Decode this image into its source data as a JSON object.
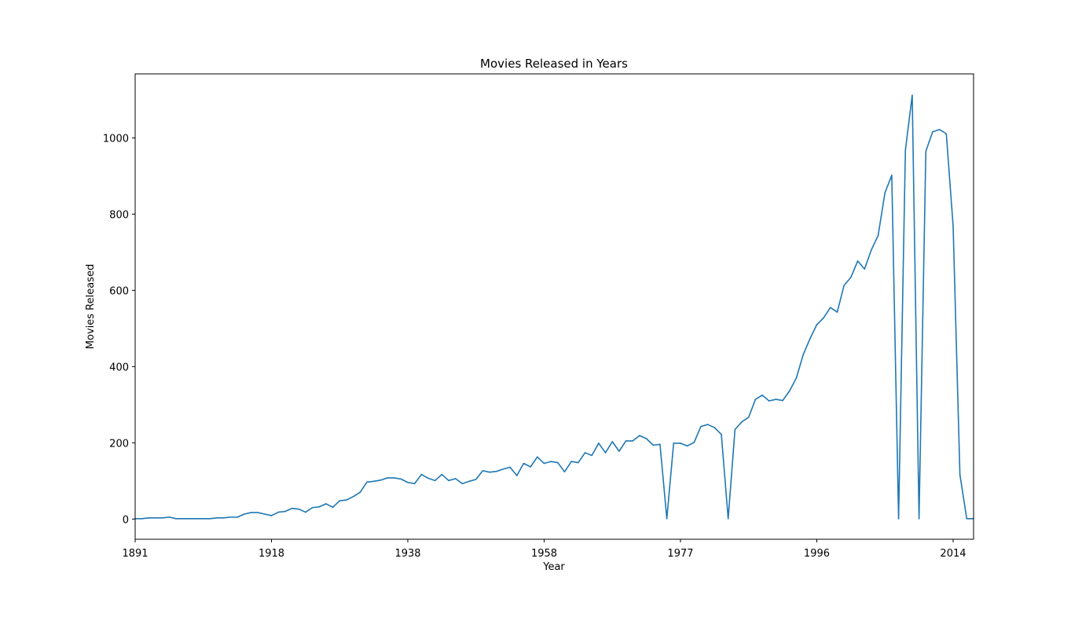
{
  "chart_data": {
    "type": "line",
    "title": "Movies Released in Years",
    "xlabel": "Year",
    "ylabel": "Movies Released",
    "xlim": [
      0,
      123
    ],
    "ylim": [
      -53,
      1168
    ],
    "x_ticks": [
      {
        "pos": 0,
        "label": "1891"
      },
      {
        "pos": 20,
        "label": "1918"
      },
      {
        "pos": 40,
        "label": "1938"
      },
      {
        "pos": 60,
        "label": "1958"
      },
      {
        "pos": 80,
        "label": "1977"
      },
      {
        "pos": 100,
        "label": "1996"
      },
      {
        "pos": 120,
        "label": "2014"
      }
    ],
    "y_ticks": [
      0,
      200,
      400,
      600,
      800,
      1000
    ],
    "grid": false,
    "color": "#1f77b4",
    "series": [
      {
        "x": [
          0,
          1,
          2,
          3,
          4,
          5,
          6,
          7,
          8,
          9,
          10,
          11,
          12,
          13,
          14,
          15,
          16,
          17,
          18,
          19,
          20,
          21,
          22,
          23,
          24,
          25,
          26,
          27,
          28,
          29,
          30,
          31,
          32,
          33,
          34,
          35,
          36,
          37,
          38,
          39,
          40,
          41,
          42,
          43,
          44,
          45,
          46,
          47,
          48,
          49,
          50,
          51,
          52,
          53,
          54,
          55,
          56,
          57,
          58,
          59,
          60,
          61,
          62,
          63,
          64,
          65,
          66,
          67,
          68,
          69,
          70,
          71,
          72,
          73,
          74,
          75,
          76,
          77,
          78,
          79,
          80,
          81,
          82,
          83,
          84,
          85,
          86,
          87,
          88,
          89,
          90,
          91,
          92,
          93,
          94,
          95,
          96,
          97,
          98,
          99,
          100,
          101,
          102,
          103,
          104,
          105,
          106,
          107,
          108,
          109,
          110,
          111,
          112,
          113,
          114,
          115,
          116,
          117,
          118,
          119,
          120,
          121,
          122,
          123
        ],
        "values": [
          1,
          1,
          3,
          3,
          3,
          5,
          1,
          1,
          1,
          1,
          1,
          1,
          3,
          3,
          5,
          5,
          13,
          17,
          17,
          13,
          9,
          18,
          20,
          28,
          26,
          18,
          30,
          32,
          40,
          31,
          48,
          50,
          59,
          70,
          97,
          99,
          102,
          108,
          108,
          105,
          96,
          93,
          117,
          107,
          101,
          117,
          101,
          106,
          93,
          99,
          104,
          127,
          123,
          125,
          131,
          136,
          114,
          146,
          137,
          163,
          146,
          151,
          148,
          124,
          151,
          148,
          174,
          167,
          199,
          174,
          203,
          178,
          205,
          205,
          219,
          211,
          194,
          196,
          1,
          199,
          199,
          192,
          201,
          243,
          248,
          240,
          222,
          1,
          235,
          255,
          267,
          314,
          325,
          310,
          314,
          311,
          336,
          370,
          431,
          473,
          510,
          528,
          555,
          543,
          613,
          634,
          677,
          656,
          706,
          744,
          856,
          902,
          1,
          968,
          1112,
          1,
          965,
          1016,
          1022,
          1011,
          769,
          116,
          1,
          1
        ]
      }
    ]
  }
}
